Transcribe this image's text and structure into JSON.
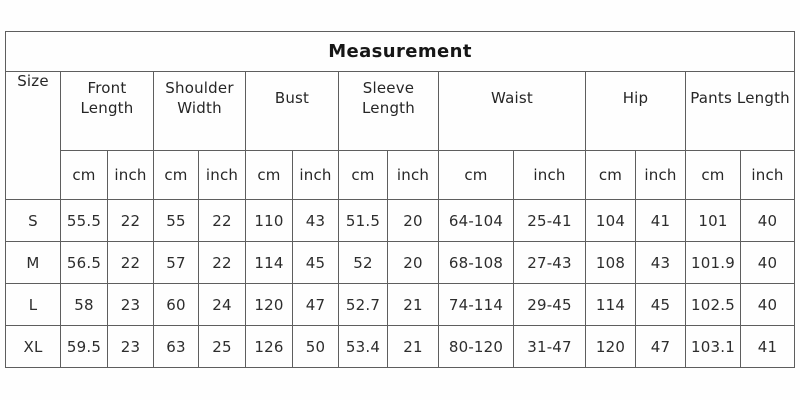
{
  "title": "Measurement",
  "size_column_header": "Size",
  "units": {
    "cm": "cm",
    "inch": "inch"
  },
  "measurement_groups": [
    "Front Length",
    "Shoulder Width",
    "Bust",
    "Sleeve Length",
    "Waist",
    "Hip",
    "Pants Length"
  ],
  "chart_data": {
    "type": "table",
    "title": "Measurement",
    "columns": [
      "Size",
      "Front Length (cm)",
      "Front Length (inch)",
      "Shoulder Width (cm)",
      "Shoulder Width (inch)",
      "Bust (cm)",
      "Bust (inch)",
      "Sleeve Length (cm)",
      "Sleeve Length (inch)",
      "Waist (cm)",
      "Waist (inch)",
      "Hip (cm)",
      "Hip (inch)",
      "Pants Length (cm)",
      "Pants Length (inch)"
    ],
    "rows": [
      [
        "S",
        "55.5",
        "22",
        "55",
        "22",
        "110",
        "43",
        "51.5",
        "20",
        "64-104",
        "25-41",
        "104",
        "41",
        "101",
        "40"
      ],
      [
        "M",
        "56.5",
        "22",
        "57",
        "22",
        "114",
        "45",
        "52",
        "20",
        "68-108",
        "27-43",
        "108",
        "43",
        "101.9",
        "40"
      ],
      [
        "L",
        "58",
        "23",
        "60",
        "24",
        "120",
        "47",
        "52.7",
        "21",
        "74-114",
        "29-45",
        "114",
        "45",
        "102.5",
        "40"
      ],
      [
        "XL",
        "59.5",
        "23",
        "63",
        "25",
        "126",
        "50",
        "53.4",
        "21",
        "80-120",
        "31-47",
        "120",
        "47",
        "103.1",
        "41"
      ]
    ]
  }
}
